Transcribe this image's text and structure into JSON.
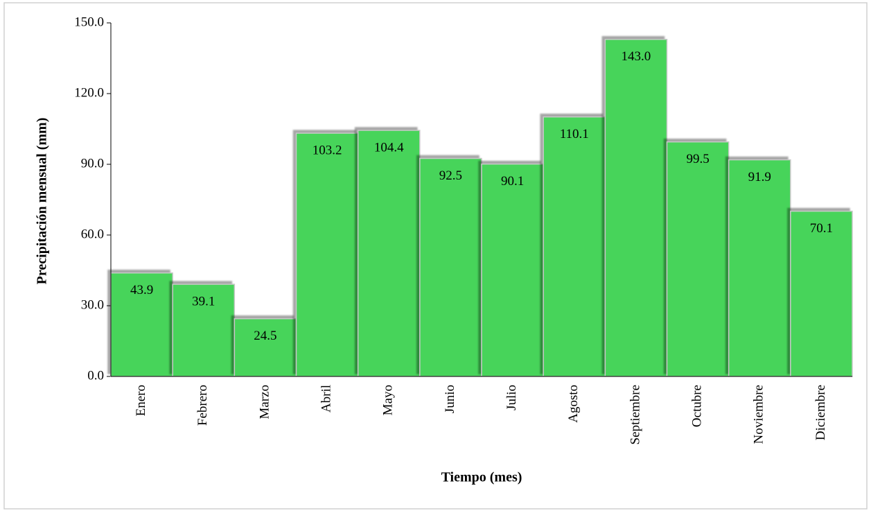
{
  "chart_data": {
    "type": "bar",
    "x_label": "Tiempo (mes)",
    "y_label": "Precipitación mensual (mm)",
    "categories": [
      "Enero",
      "Febrero",
      "Marzo",
      "Abril",
      "Mayo",
      "Junio",
      "Julio",
      "Agosto",
      "Septiembre",
      "Octubre",
      "Noviembre",
      "Diciembre"
    ],
    "values": [
      43.9,
      39.1,
      24.5,
      103.2,
      104.4,
      92.5,
      90.1,
      110.1,
      143.0,
      99.5,
      91.9,
      70.1
    ],
    "value_labels": [
      "43.9",
      "39.1",
      "24.5",
      "103.2",
      "104.4",
      "92.5",
      "90.1",
      "110.1",
      "143.0",
      "99.5",
      "91.9",
      "70.1"
    ],
    "color": "#47d45a",
    "ylim": [
      0,
      150
    ],
    "yticks": [
      {
        "value": 0,
        "label": "0.0"
      },
      {
        "value": 30,
        "label": "30.0"
      },
      {
        "value": 60,
        "label": "60.0"
      },
      {
        "value": 90,
        "label": "90.0"
      },
      {
        "value": 120,
        "label": "120.0"
      },
      {
        "value": 150,
        "label": "150.0"
      }
    ],
    "grid": false
  }
}
